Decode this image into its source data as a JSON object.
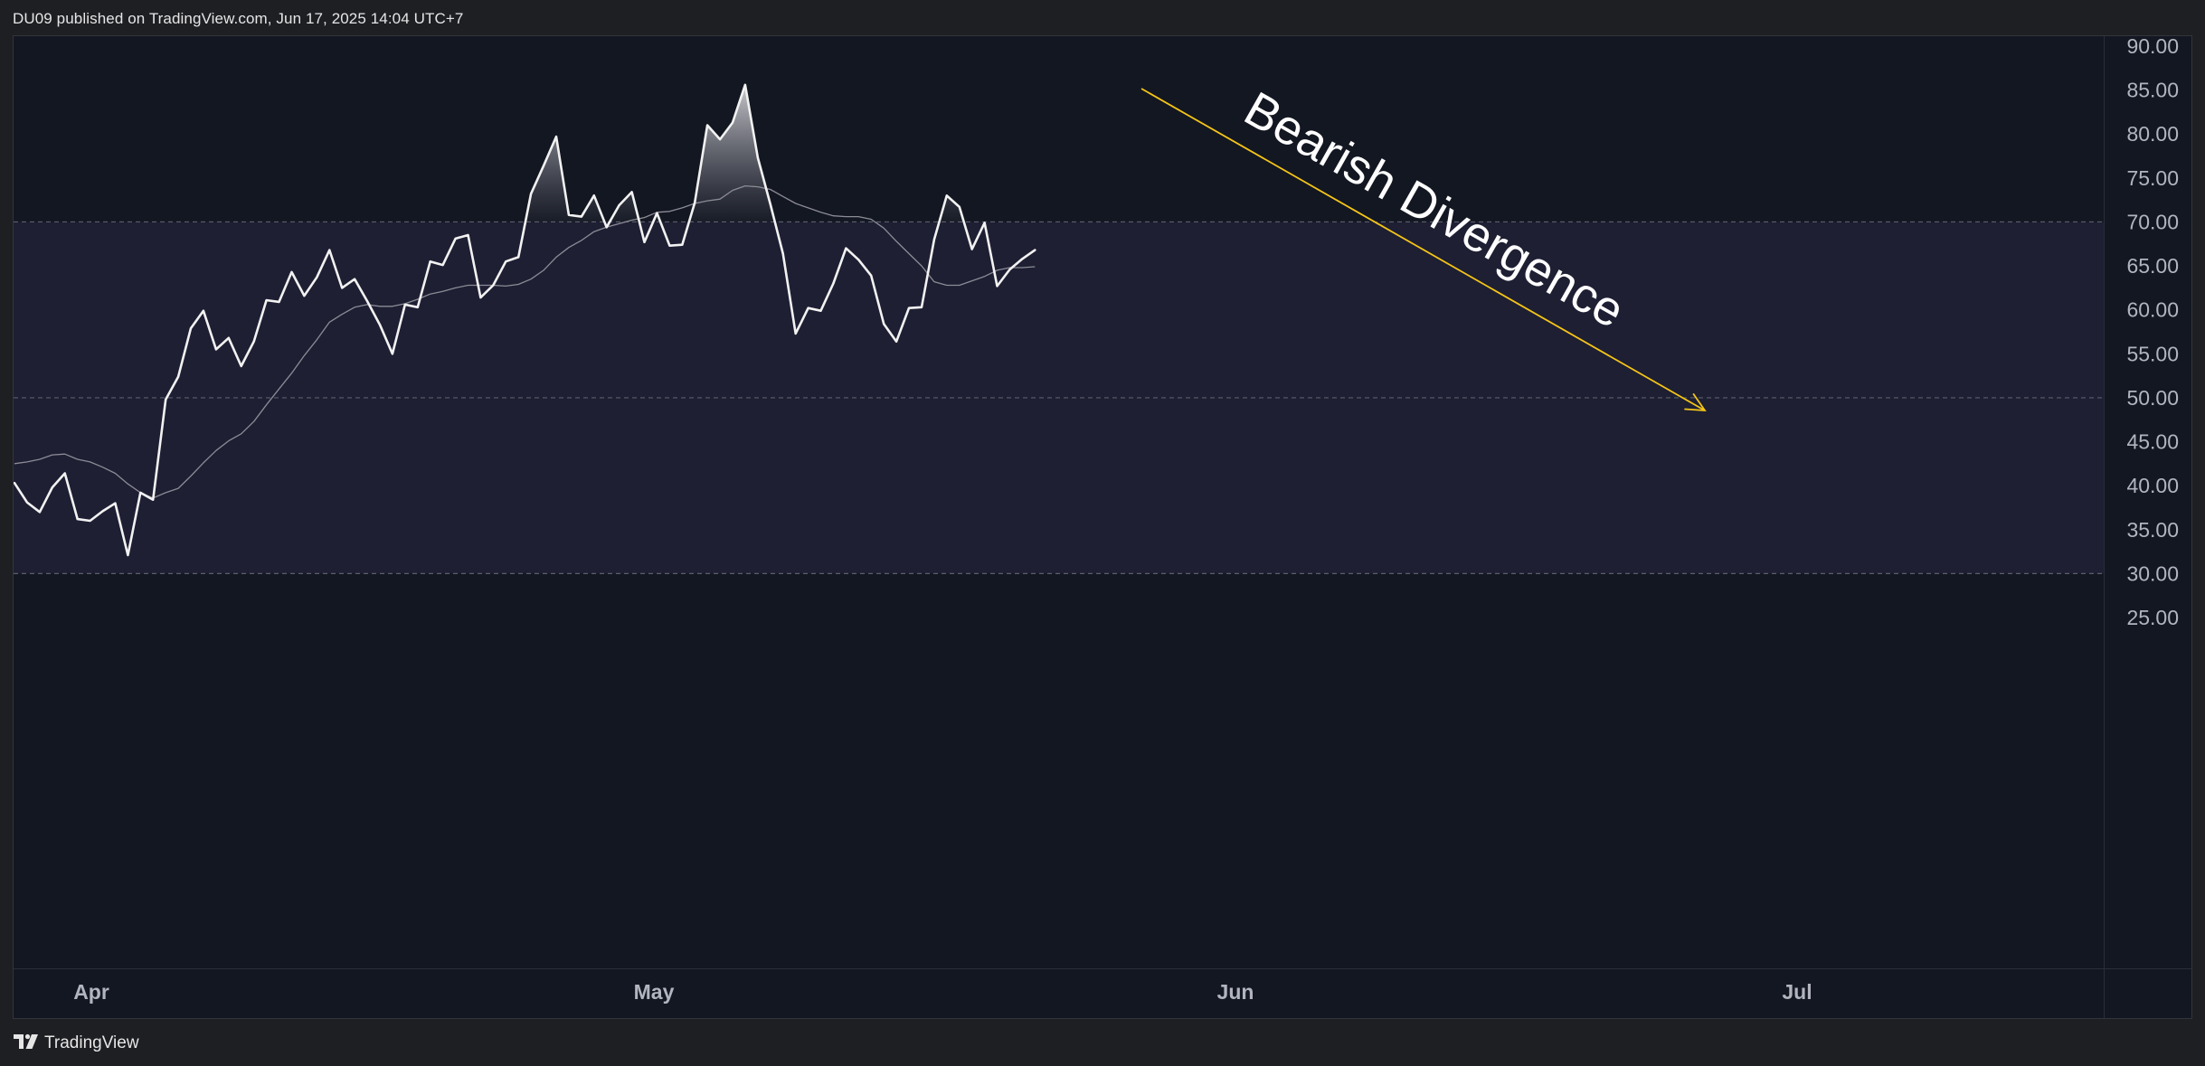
{
  "header": {
    "published_text": "DU09 published on TradingView.com, Jun 17, 2025 14:04 UTC+7"
  },
  "footer": {
    "brand": "TradingView",
    "logo_icon": "tradingview-logo-icon"
  },
  "colors": {
    "background": "#131722",
    "band_fill": "#1e1f33",
    "rsi_line": "#f2f2f2",
    "ma_line": "#8c8c96",
    "arrow": "#f5c518",
    "grid_dashed": "#5c5f6b",
    "axis_text": "#b2b5be"
  },
  "annotation": {
    "text": "Bearish Divergence"
  },
  "chart_data": {
    "type": "line",
    "title": "",
    "xlabel": "",
    "ylabel": "",
    "ylim": [
      25,
      92
    ],
    "y_ticks": [
      "25.00",
      "30.00",
      "35.00",
      "40.00",
      "45.00",
      "50.00",
      "55.00",
      "60.00",
      "65.00",
      "70.00",
      "75.00",
      "80.00",
      "85.00",
      "90.00"
    ],
    "x_tick_labels": [
      "Apr",
      "May",
      "Jun",
      "Jul"
    ],
    "reference_levels": [
      70,
      50,
      30
    ],
    "overbought_band": [
      30,
      70
    ],
    "series": [
      {
        "role": "rsi",
        "values": [
          40.3,
          38.1,
          37.0,
          39.8,
          41.4,
          36.2,
          36.0,
          37.1,
          38.0,
          32.1,
          39.2,
          38.4,
          49.8,
          52.4,
          57.9,
          59.9,
          55.5,
          56.8,
          53.6,
          56.4,
          61.1,
          60.9,
          64.3,
          61.6,
          63.7,
          66.8,
          62.5,
          63.5,
          61.0,
          58.3,
          55.0,
          60.6,
          60.3,
          65.5,
          65.1,
          68.1,
          68.5,
          61.4,
          62.8,
          65.5,
          66.0,
          73.2,
          76.4,
          79.7,
          70.8,
          70.6,
          73.0,
          69.4,
          71.9,
          73.4,
          67.7,
          71.0,
          67.3,
          67.4,
          72.2,
          81.0,
          79.4,
          81.3,
          85.6,
          77.3,
          72.0,
          66.4,
          57.3,
          60.2,
          59.9,
          63.0,
          67.0,
          65.7,
          63.9,
          58.4,
          56.4,
          60.2,
          60.3,
          68.0,
          73.0,
          71.7,
          66.9,
          69.9,
          62.7,
          64.6,
          65.8,
          66.8
        ]
      },
      {
        "role": "rsi-moving-average",
        "values": [
          42.5,
          42.7,
          43.0,
          43.5,
          43.6,
          43.0,
          42.7,
          42.1,
          41.4,
          40.2,
          39.2,
          38.6,
          39.2,
          39.7,
          41.1,
          42.6,
          44.0,
          45.1,
          45.9,
          47.3,
          49.2,
          51.0,
          52.8,
          54.8,
          56.6,
          58.6,
          59.5,
          60.3,
          60.6,
          60.4,
          60.4,
          60.7,
          61.2,
          61.8,
          62.1,
          62.5,
          62.8,
          62.8,
          62.8,
          62.7,
          62.9,
          63.5,
          64.5,
          66.0,
          67.1,
          67.9,
          68.9,
          69.4,
          69.8,
          70.2,
          70.5,
          71.1,
          71.2,
          71.6,
          72.1,
          72.4,
          72.6,
          73.6,
          74.1,
          74.0,
          73.7,
          72.9,
          72.1,
          71.6,
          71.1,
          70.7,
          70.6,
          70.6,
          70.3,
          69.3,
          67.8,
          66.4,
          65.0,
          63.2,
          62.8,
          62.8,
          63.3,
          63.8,
          64.5,
          64.8,
          64.8,
          64.9
        ]
      }
    ]
  }
}
